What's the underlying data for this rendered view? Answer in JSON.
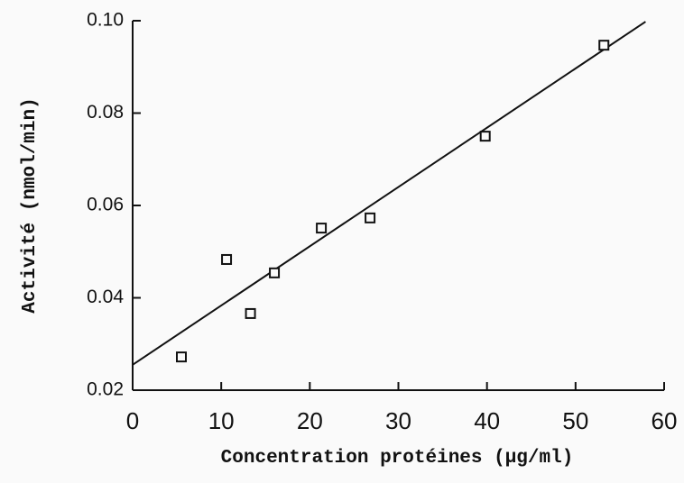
{
  "chart_data": {
    "type": "scatter",
    "xlabel": "Concentration protéines (µg/ml)",
    "ylabel": "Activité   (nmol/min)",
    "x": [
      5.5,
      10.6,
      13.3,
      16.0,
      21.3,
      26.8,
      39.8,
      53.2
    ],
    "y": [
      0.0272,
      0.0483,
      0.0366,
      0.0454,
      0.0551,
      0.0573,
      0.075,
      0.0947
    ],
    "fit_line": {
      "x": [
        0,
        57.9
      ],
      "y": [
        0.0255,
        0.0998
      ]
    },
    "color": "#111111",
    "xlim": [
      0,
      60
    ],
    "xticks": [
      0,
      10,
      20,
      30,
      40,
      50,
      60
    ],
    "ylim": [
      0.02,
      0.1
    ],
    "yticks": [
      0.02,
      0.04,
      0.06,
      0.08,
      {
        "value": 0.1,
        "label": "0.10"
      }
    ]
  }
}
